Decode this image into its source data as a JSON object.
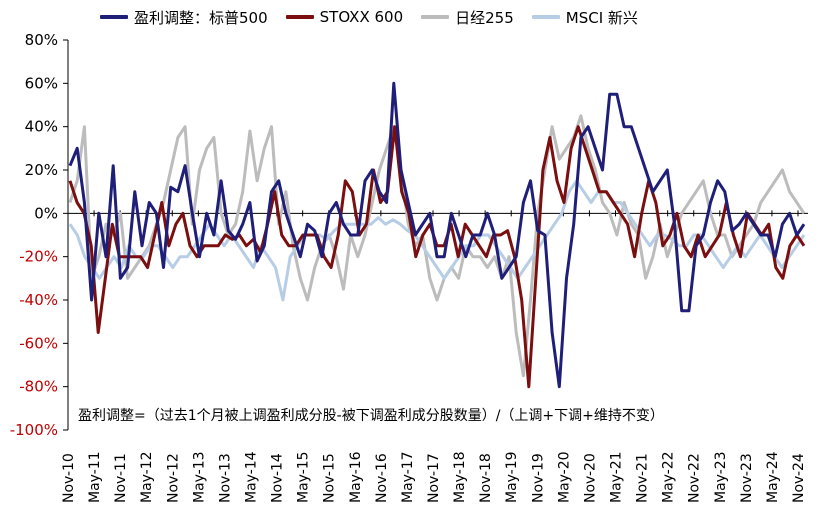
{
  "legend": [
    {
      "name": "盈利调整：标普500",
      "color": "#1f1f7a"
    },
    {
      "name": "STOXX 600",
      "color": "#7b0f0f"
    },
    {
      "name": "日经255",
      "color": "#bcbcbc"
    },
    {
      "name": "MSCI 新兴",
      "color": "#b7cde6"
    }
  ],
  "note": "盈利调整=（过去1个月被上调盈利成分股-被下调盈利成分股数量）/（上调+下调+维持不变）",
  "chart_data": {
    "type": "line",
    "y_unit": "%",
    "ylim": [
      -100,
      80
    ],
    "y_ticks": [
      80,
      60,
      40,
      20,
      0,
      -20,
      -40,
      -60,
      -80,
      -100
    ],
    "y_tick_labels": [
      "80%",
      "60%",
      "40%",
      "20%",
      "0%",
      "-20%",
      "-40%",
      "-60%",
      "-80%",
      "-100%"
    ],
    "negative_tick_color": "#c00000",
    "x_tick_labels": [
      "Nov-10",
      "May-11",
      "Nov-11",
      "May-12",
      "Nov-12",
      "May-13",
      "Nov-13",
      "May-14",
      "Nov-14",
      "May-15",
      "Nov-15",
      "May-16",
      "Nov-16",
      "May-17",
      "Nov-17",
      "May-18",
      "Nov-18",
      "May-19",
      "Nov-19",
      "May-20",
      "Nov-20",
      "May-21",
      "Nov-21",
      "May-22",
      "Nov-22",
      "May-23",
      "Nov-23",
      "May-24",
      "Nov-24"
    ],
    "series": [
      {
        "name": "盈利调整：标普500",
        "color": "#1f1f7a",
        "values": [
          22,
          30,
          5,
          -40,
          0,
          -20,
          22,
          -30,
          -25,
          10,
          -15,
          5,
          0,
          -25,
          12,
          10,
          22,
          0,
          -20,
          0,
          -10,
          15,
          -8,
          -12,
          -5,
          5,
          -22,
          -15,
          10,
          15,
          0,
          -10,
          -20,
          -5,
          -8,
          -20,
          0,
          5,
          -5,
          -10,
          -10,
          15,
          20,
          10,
          5,
          60,
          20,
          5,
          -10,
          -5,
          0,
          -20,
          -20,
          0,
          -10,
          -20,
          -10,
          -10,
          0,
          -10,
          -30,
          -25,
          -20,
          5,
          15,
          -8,
          -10,
          -55,
          -80,
          -30,
          -5,
          35,
          40,
          30,
          20,
          55,
          55,
          40,
          40,
          30,
          20,
          10,
          15,
          20,
          -5,
          -45,
          -45,
          -15,
          -10,
          5,
          15,
          10,
          -8,
          -5,
          0,
          -5,
          -10,
          -10,
          -20,
          -5,
          0,
          -10,
          -5
        ]
      },
      {
        "name": "STOXX 600",
        "color": "#7b0f0f",
        "values": [
          15,
          5,
          0,
          -15,
          -55,
          -30,
          -5,
          -20,
          -20,
          -20,
          -20,
          -25,
          -10,
          5,
          -15,
          -5,
          0,
          -15,
          -20,
          -15,
          -15,
          -15,
          -10,
          -12,
          -10,
          -15,
          -12,
          -18,
          -5,
          10,
          -10,
          -15,
          -15,
          -10,
          -10,
          -10,
          -20,
          -25,
          -10,
          15,
          10,
          -10,
          -5,
          20,
          5,
          10,
          40,
          10,
          0,
          -20,
          -10,
          -5,
          -15,
          -15,
          -5,
          -20,
          -5,
          -10,
          -15,
          -20,
          -10,
          -10,
          -8,
          -20,
          -40,
          -80,
          -30,
          20,
          35,
          15,
          5,
          30,
          40,
          30,
          20,
          10,
          10,
          5,
          0,
          -5,
          -20,
          0,
          15,
          5,
          -15,
          -10,
          0,
          -15,
          -20,
          -10,
          -20,
          -15,
          -10,
          5,
          -10,
          -20,
          0,
          -5,
          -10,
          -5,
          -25,
          -30,
          -15,
          -10,
          -15
        ]
      },
      {
        "name": "日经255",
        "color": "#bcbcbc",
        "values": [
          5,
          15,
          40,
          -30,
          -20,
          -5,
          -10,
          0,
          -30,
          -25,
          -20,
          -15,
          -5,
          5,
          20,
          35,
          40,
          -5,
          20,
          30,
          35,
          0,
          -10,
          -5,
          10,
          38,
          15,
          30,
          40,
          -5,
          10,
          -15,
          -30,
          -40,
          -25,
          -15,
          -10,
          -20,
          -35,
          -10,
          -20,
          -10,
          5,
          20,
          30,
          40,
          20,
          -5,
          -15,
          -10,
          -30,
          -40,
          -30,
          -25,
          -30,
          -15,
          -20,
          -20,
          -25,
          -20,
          -30,
          -20,
          -55,
          -75,
          -40,
          0,
          20,
          40,
          25,
          30,
          35,
          45,
          30,
          20,
          5,
          0,
          -10,
          5,
          -5,
          -10,
          -30,
          -20,
          -5,
          -20,
          -10,
          0,
          5,
          10,
          15,
          0,
          -10,
          -10,
          -20,
          -15,
          -10,
          -5,
          5,
          10,
          15,
          20,
          10,
          5,
          0
        ]
      },
      {
        "name": "MSCI 新兴",
        "color": "#b7cde6",
        "values": [
          -5,
          -10,
          -20,
          -25,
          -30,
          -25,
          -20,
          -25,
          -15,
          -20,
          -20,
          -15,
          -15,
          -20,
          -25,
          -20,
          -20,
          -15,
          -10,
          -5,
          -10,
          -15,
          -10,
          -15,
          -20,
          -25,
          -15,
          -20,
          -25,
          -40,
          -20,
          -15,
          -10,
          -10,
          -10,
          -12,
          -8,
          -5,
          -5,
          -5,
          -5,
          -5,
          -2,
          -5,
          -3,
          -5,
          -8,
          -10,
          -15,
          -20,
          -25,
          -30,
          -25,
          -20,
          -15,
          -15,
          -10,
          -10,
          -15,
          -20,
          -25,
          -30,
          -25,
          -20,
          -15,
          -10,
          -5,
          0,
          10,
          15,
          10,
          5,
          10,
          10,
          5,
          5,
          0,
          -5,
          -10,
          -15,
          -10,
          -10,
          -12,
          -15,
          -15,
          -10,
          -10,
          -15,
          -20,
          -25,
          -20,
          -15,
          -20,
          -15,
          -10,
          -15,
          -20,
          -25,
          -20,
          -15,
          -10
        ]
      }
    ]
  }
}
